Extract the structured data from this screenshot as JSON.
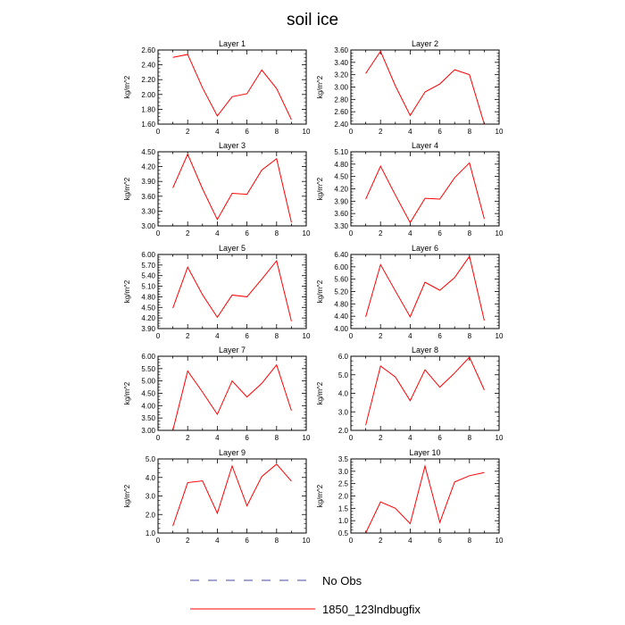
{
  "figure": {
    "title": "soil ice"
  },
  "legend": {
    "entries": [
      {
        "label": "No Obs",
        "color": "#4a4aa0",
        "style": "dashed"
      },
      {
        "label": "1850_123lndbugfix",
        "color": "#ff0000",
        "style": "solid"
      }
    ]
  },
  "chart_data": [
    {
      "type": "line",
      "title": "Layer 1",
      "ylabel": "kg/m^2",
      "xlim": [
        0,
        10
      ],
      "ylim": [
        1.6,
        2.6
      ],
      "xticks": [
        0,
        2,
        4,
        6,
        8,
        10
      ],
      "yticks": [
        "1.60",
        "1.80",
        "2.00",
        "2.20",
        "2.40",
        "2.60"
      ],
      "series": [
        {
          "color": "#ff0000",
          "x": [
            1,
            2,
            3,
            4,
            5,
            6,
            7,
            8,
            9
          ],
          "values": [
            2.5,
            2.54,
            2.09,
            1.71,
            1.97,
            2.01,
            2.33,
            2.08,
            1.66
          ]
        }
      ]
    },
    {
      "type": "line",
      "title": "Layer 2",
      "ylabel": "kg/m^2",
      "xlim": [
        0,
        10
      ],
      "ylim": [
        2.4,
        3.6
      ],
      "xticks": [
        0,
        2,
        4,
        6,
        8,
        10
      ],
      "yticks": [
        "2.40",
        "2.60",
        "2.80",
        "3.00",
        "3.20",
        "3.40",
        "3.60"
      ],
      "series": [
        {
          "color": "#ff0000",
          "x": [
            1,
            2,
            3,
            4,
            5,
            6,
            7,
            8,
            9
          ],
          "values": [
            3.22,
            3.58,
            3.02,
            2.54,
            2.92,
            3.05,
            3.28,
            3.2,
            2.4
          ]
        }
      ]
    },
    {
      "type": "line",
      "title": "Layer 3",
      "ylabel": "kg/m^2",
      "xlim": [
        0,
        10
      ],
      "ylim": [
        3.0,
        4.5
      ],
      "xticks": [
        0,
        2,
        4,
        6,
        8,
        10
      ],
      "yticks": [
        "3.00",
        "3.30",
        "3.60",
        "3.90",
        "4.20",
        "4.50"
      ],
      "series": [
        {
          "color": "#ff0000",
          "x": [
            1,
            2,
            3,
            4,
            5,
            6,
            7,
            8,
            9
          ],
          "values": [
            3.77,
            4.45,
            3.75,
            3.13,
            3.66,
            3.64,
            4.13,
            4.36,
            3.07
          ]
        }
      ]
    },
    {
      "type": "line",
      "title": "Layer 4",
      "ylabel": "kg/m^2",
      "xlim": [
        0,
        10
      ],
      "ylim": [
        3.3,
        5.1
      ],
      "xticks": [
        0,
        2,
        4,
        6,
        8,
        10
      ],
      "yticks": [
        "3.30",
        "3.60",
        "3.90",
        "4.20",
        "4.50",
        "4.80",
        "5.10"
      ],
      "series": [
        {
          "color": "#ff0000",
          "x": [
            1,
            2,
            3,
            4,
            5,
            6,
            7,
            8,
            9
          ],
          "values": [
            3.95,
            4.75,
            4.05,
            3.38,
            3.97,
            3.95,
            4.47,
            4.83,
            3.47
          ]
        }
      ]
    },
    {
      "type": "line",
      "title": "Layer 5",
      "ylabel": "kg/m^2",
      "xlim": [
        0,
        10
      ],
      "ylim": [
        3.9,
        6.0
      ],
      "xticks": [
        0,
        2,
        4,
        6,
        8,
        10
      ],
      "yticks": [
        "3.90",
        "4.20",
        "4.50",
        "4.80",
        "5.10",
        "5.40",
        "5.70",
        "6.00"
      ],
      "series": [
        {
          "color": "#ff0000",
          "x": [
            1,
            2,
            3,
            4,
            5,
            6,
            7,
            8,
            9
          ],
          "values": [
            4.48,
            5.64,
            4.86,
            4.22,
            4.85,
            4.8,
            5.3,
            5.82,
            4.11
          ]
        }
      ]
    },
    {
      "type": "line",
      "title": "Layer 6",
      "ylabel": "kg/m^2",
      "xlim": [
        0,
        10
      ],
      "ylim": [
        4.0,
        6.4
      ],
      "xticks": [
        0,
        2,
        4,
        6,
        8,
        10
      ],
      "yticks": [
        "4.00",
        "4.40",
        "4.80",
        "5.20",
        "5.60",
        "6.00",
        "6.40"
      ],
      "series": [
        {
          "color": "#ff0000",
          "x": [
            1,
            2,
            3,
            4,
            5,
            6,
            7,
            8,
            9
          ],
          "values": [
            4.38,
            6.07,
            5.22,
            4.38,
            5.5,
            5.24,
            5.65,
            6.34,
            4.26
          ]
        }
      ]
    },
    {
      "type": "line",
      "title": "Layer 7",
      "ylabel": "kg/m^2",
      "xlim": [
        0,
        10
      ],
      "ylim": [
        3.0,
        6.0
      ],
      "xticks": [
        0,
        2,
        4,
        6,
        8,
        10
      ],
      "yticks": [
        "3.00",
        "3.50",
        "4.00",
        "4.50",
        "5.00",
        "5.50",
        "6.00"
      ],
      "series": [
        {
          "color": "#ff0000",
          "x": [
            1,
            2,
            3,
            4,
            5,
            6,
            7,
            8,
            9
          ],
          "values": [
            3.0,
            5.4,
            4.55,
            3.65,
            5.0,
            4.35,
            4.9,
            5.65,
            3.8
          ]
        }
      ]
    },
    {
      "type": "line",
      "title": "Layer 8",
      "ylabel": "kg/m^2",
      "xlim": [
        0,
        10
      ],
      "ylim": [
        2.0,
        6.0
      ],
      "xticks": [
        0,
        2,
        4,
        6,
        8,
        10
      ],
      "yticks": [
        "2.0",
        "3.0",
        "4.0",
        "5.0",
        "6.0"
      ],
      "series": [
        {
          "color": "#ff0000",
          "x": [
            1,
            2,
            3,
            4,
            5,
            6,
            7,
            8,
            9
          ],
          "values": [
            2.28,
            5.47,
            4.88,
            3.6,
            5.27,
            4.33,
            5.1,
            5.95,
            4.18
          ]
        }
      ]
    },
    {
      "type": "line",
      "title": "Layer 9",
      "ylabel": "kg/m^2",
      "xlim": [
        0,
        10
      ],
      "ylim": [
        1.0,
        5.0
      ],
      "xticks": [
        0,
        2,
        4,
        6,
        8,
        10
      ],
      "yticks": [
        "1.0",
        "2.0",
        "3.0",
        "4.0",
        "5.0"
      ],
      "series": [
        {
          "color": "#ff0000",
          "x": [
            1,
            2,
            3,
            4,
            5,
            6,
            7,
            8,
            9
          ],
          "values": [
            1.38,
            3.72,
            3.82,
            2.07,
            4.62,
            2.47,
            4.05,
            4.72,
            3.8
          ]
        }
      ]
    },
    {
      "type": "line",
      "title": "Layer 10",
      "ylabel": "kg/m^2",
      "xlim": [
        0,
        10
      ],
      "ylim": [
        0.5,
        3.5
      ],
      "xticks": [
        0,
        2,
        4,
        6,
        8,
        10
      ],
      "yticks": [
        "0.5",
        "1.0",
        "1.5",
        "2.0",
        "2.5",
        "3.0",
        "3.5"
      ],
      "series": [
        {
          "color": "#ff0000",
          "x": [
            1,
            2,
            3,
            4,
            5,
            6,
            7,
            8,
            9
          ],
          "values": [
            0.5,
            1.76,
            1.5,
            0.88,
            3.21,
            0.93,
            2.57,
            2.82,
            2.95
          ]
        }
      ]
    }
  ]
}
